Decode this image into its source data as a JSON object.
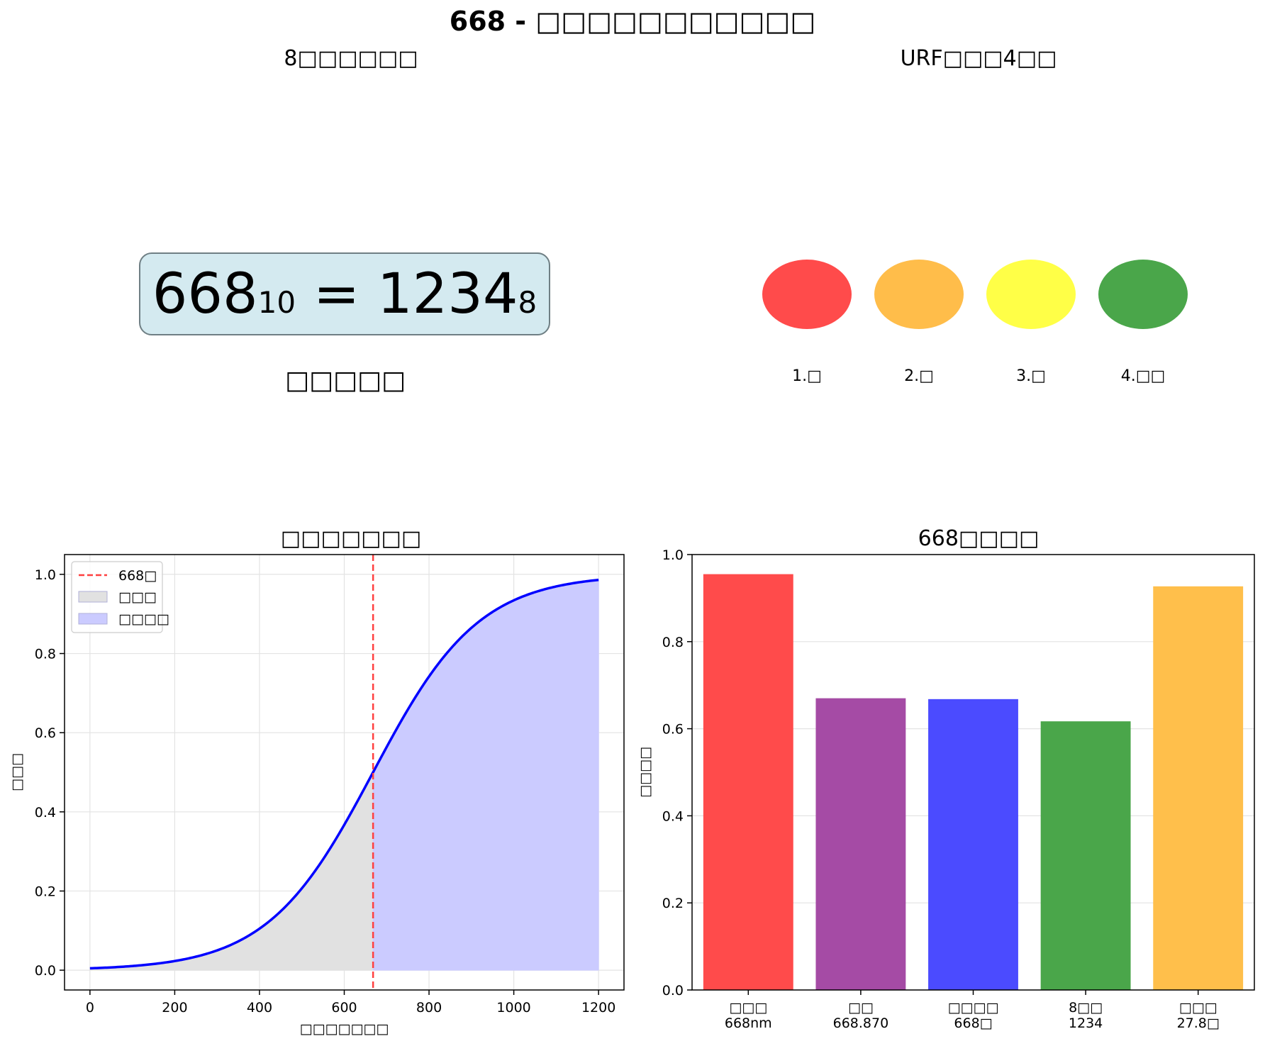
{
  "suptitle": "668 - □□□□□□□□□□□",
  "base8": {
    "title": "8□□□□□□",
    "decimal": "668",
    "decimal_base": "10",
    "equals": "=",
    "octal": "1234",
    "octal_base": "8",
    "caption": "□□□□□"
  },
  "urf": {
    "title": "URF□□□4□□",
    "stages": [
      {
        "label": "1.□",
        "color": "#ff4b4b"
      },
      {
        "label": "2.□",
        "color": "#ffbd4a"
      },
      {
        "label": "3.□",
        "color": "#ffff47"
      },
      {
        "label": "4.□□",
        "color": "#4aa64a"
      }
    ]
  },
  "chart_data": [
    {
      "type": "line",
      "title": "□□□□□□□",
      "xlabel": "□□□□□□□",
      "ylabel": "□□□",
      "xlim": [
        -60,
        1260
      ],
      "ylim": [
        -0.05,
        1.05
      ],
      "xticks": [
        0,
        200,
        400,
        600,
        800,
        1000,
        1200
      ],
      "yticks": [
        0.0,
        0.2,
        0.4,
        0.6,
        0.8,
        1.0
      ],
      "grid": true,
      "legend_position": "top-left",
      "curve": {
        "kind": "logistic",
        "center": 668,
        "scale": 125,
        "x_range": [
          0,
          1200
        ],
        "color": "#0000ff"
      },
      "series": [
        {
          "x": [
            0,
            100,
            200,
            300,
            400,
            500,
            600,
            668,
            700,
            800,
            900,
            1000,
            1100,
            1200
          ],
          "y": [
            0.005,
            0.012,
            0.023,
            0.038,
            0.06,
            0.2,
            0.36,
            0.5,
            0.58,
            0.78,
            0.88,
            0.94,
            0.975,
            0.995
          ]
        }
      ],
      "vline": {
        "x": 668,
        "label": "668□",
        "color": "#ff0000"
      },
      "fills": [
        {
          "label": "□□□",
          "from": 0,
          "to": 668,
          "color": "#e1e1e1"
        },
        {
          "label": "□□□□",
          "from": 668,
          "to": 1200,
          "color": "#cbcbff"
        }
      ]
    },
    {
      "type": "bar",
      "title": "668□□□□",
      "ylabel": "□□□□",
      "ylim": [
        0,
        1.0
      ],
      "yticks": [
        0.0,
        0.2,
        0.4,
        0.6,
        0.8,
        1.0
      ],
      "grid": true,
      "categories": [
        {
          "line1": "□□□",
          "line2": "668nm"
        },
        {
          "line1": "□□",
          "line2": "668.870"
        },
        {
          "line1": "□□□□",
          "line2": "668□"
        },
        {
          "line1": "8□□",
          "line2": "1234"
        },
        {
          "line1": "□□□",
          "line2": "27.8□"
        }
      ],
      "values": [
        0.955,
        0.67,
        0.668,
        0.617,
        0.927
      ],
      "colors": [
        "#ff4b4b",
        "#a54ba5",
        "#4b4bff",
        "#4aa64a",
        "#ffbf4b"
      ]
    }
  ]
}
